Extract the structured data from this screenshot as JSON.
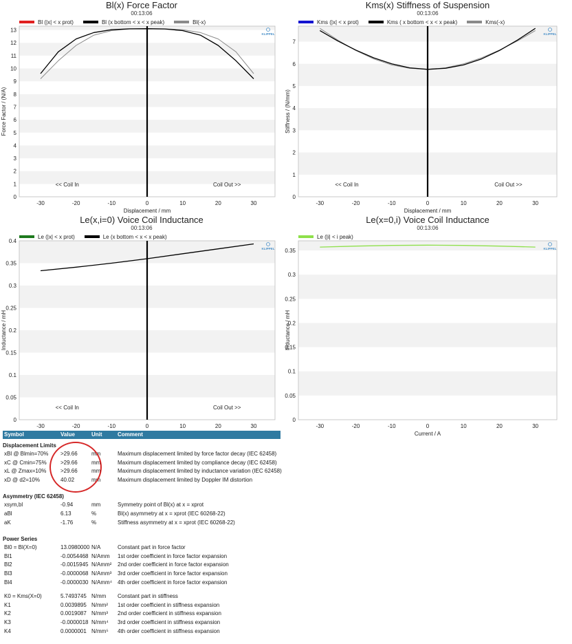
{
  "charts": [
    {
      "title": "Bl(x) Force Factor",
      "time": "00:13:06",
      "legend": [
        {
          "label": "Bl (|x| < x prot)",
          "color": "#e02020"
        },
        {
          "label": "Bl (x bottom < x < x peak)",
          "color": "#000000"
        },
        {
          "label": "Bl(-x)",
          "color": "#8a8a8a"
        }
      ],
      "xlabel": "Displacement / mm",
      "ylabel": "Force Factor / (N/A)",
      "annot_left": "<< Coil In",
      "annot_right": "Coil Out >>",
      "logo": "KLIPPEL"
    },
    {
      "title": "Kms(x) Stiffness of Suspension",
      "time": "00:13:06",
      "legend": [
        {
          "label": "Kms (|x| < x prot)",
          "color": "#1414d0"
        },
        {
          "label": "Kms ( x bottom < x < x peak)",
          "color": "#000000"
        },
        {
          "label": "Kms(-x)",
          "color": "#8a8a8a"
        }
      ],
      "xlabel": "Displacement / mm",
      "ylabel": "Stiffness / (N/mm)",
      "annot_left": "<< Coil In",
      "annot_right": "Coil Out >>",
      "logo": "KLIPPEL"
    },
    {
      "title": "Le(x,i=0) Voice Coil Inductance",
      "time": "00:13:06",
      "legend": [
        {
          "label": "Le (|x| < x prot)",
          "color": "#1e7a1e"
        },
        {
          "label": "Le (x bottom < x < x peak)",
          "color": "#000000"
        }
      ],
      "xlabel": "Displacement / mm",
      "ylabel": "Inductance / mH",
      "annot_left": "<< Coil In",
      "annot_right": "Coil Out >>",
      "logo": "KLIPPEL"
    },
    {
      "title": "Le(x=0,i) Voice Coil Inductance",
      "time": "00:13:06",
      "legend": [
        {
          "label": "Le (|i| < i peak)",
          "color": "#8ee04a"
        }
      ],
      "xlabel": "Current / A",
      "ylabel": "Inductance / mH",
      "annot_left": "",
      "annot_right": "",
      "logo": "KLIPPEL"
    }
  ],
  "chart_data": [
    {
      "type": "line",
      "title": "Bl(x) Force Factor",
      "xlabel": "Displacement / mm",
      "ylabel": "Force Factor / (N/A)",
      "xlim": [
        -36,
        36
      ],
      "ylim": [
        0,
        13.3
      ],
      "xticks": [
        -30,
        -20,
        -10,
        0,
        10,
        20,
        30
      ],
      "yticks": [
        0,
        1,
        2,
        3,
        4,
        5,
        6,
        7,
        8,
        9,
        10,
        11,
        12,
        13
      ],
      "grid": "alternating horizontal bands",
      "series": [
        {
          "name": "Bl (x bottom < x < x peak)",
          "color": "#000000",
          "x": [
            -30,
            -25,
            -20,
            -15,
            -10,
            -5,
            0,
            5,
            10,
            15,
            20,
            25,
            30
          ],
          "y": [
            9.6,
            11.3,
            12.3,
            12.8,
            13.02,
            13.09,
            13.1,
            13.08,
            12.95,
            12.6,
            11.8,
            10.6,
            9.2
          ]
        },
        {
          "name": "Bl(-x)",
          "color": "#8a8a8a",
          "x": [
            -30,
            -25,
            -20,
            -15,
            -10,
            -5,
            0,
            5,
            10,
            15,
            20,
            25,
            30
          ],
          "y": [
            9.2,
            10.6,
            11.8,
            12.6,
            12.95,
            13.08,
            13.1,
            13.09,
            13.02,
            12.8,
            12.3,
            11.3,
            9.6
          ]
        }
      ]
    },
    {
      "type": "line",
      "title": "Kms(x) Stiffness of Suspension",
      "xlabel": "Displacement / mm",
      "ylabel": "Stiffness / (N/mm)",
      "xlim": [
        -36,
        36
      ],
      "ylim": [
        0,
        7.7
      ],
      "xticks": [
        -30,
        -20,
        -10,
        0,
        10,
        20,
        30
      ],
      "yticks": [
        0,
        1,
        2,
        3,
        4,
        5,
        6,
        7
      ],
      "grid": "alternating horizontal bands",
      "series": [
        {
          "name": "Kms ( x bottom < x < x peak)",
          "color": "#000000",
          "x": [
            -30,
            -25,
            -20,
            -15,
            -10,
            -5,
            0,
            5,
            10,
            15,
            20,
            25,
            30
          ],
          "y": [
            7.5,
            7.03,
            6.62,
            6.27,
            6.0,
            5.82,
            5.75,
            5.8,
            5.95,
            6.22,
            6.6,
            7.07,
            7.6
          ]
        },
        {
          "name": "Kms(-x)",
          "color": "#8a8a8a",
          "x": [
            -30,
            -25,
            -20,
            -15,
            -10,
            -5,
            0,
            5,
            10,
            15,
            20,
            25,
            30
          ],
          "y": [
            7.6,
            7.07,
            6.6,
            6.22,
            5.95,
            5.8,
            5.75,
            5.82,
            6.0,
            6.27,
            6.62,
            7.03,
            7.5
          ]
        }
      ]
    },
    {
      "type": "line",
      "title": "Le(x,i=0) Voice Coil Inductance",
      "xlabel": "Displacement / mm",
      "ylabel": "Inductance / mH",
      "xlim": [
        -36,
        36
      ],
      "ylim": [
        0,
        0.4
      ],
      "xticks": [
        -30,
        -20,
        -10,
        0,
        10,
        20,
        30
      ],
      "yticks": [
        0,
        0.05,
        0.1,
        0.15,
        0.2,
        0.25,
        0.3,
        0.35,
        0.4
      ],
      "grid": "alternating horizontal bands",
      "series": [
        {
          "name": "Le (x bottom < x < x peak)",
          "color": "#000000",
          "x": [
            -30,
            -20,
            -10,
            0,
            10,
            20,
            30
          ],
          "y": [
            0.333,
            0.341,
            0.35,
            0.36,
            0.371,
            0.382,
            0.393
          ]
        }
      ]
    },
    {
      "type": "line",
      "title": "Le(x=0,i) Voice Coil Inductance",
      "xlabel": "Current / A",
      "ylabel": "Inductance / mH",
      "xlim": [
        -36,
        36
      ],
      "ylim": [
        0,
        0.37
      ],
      "xticks": [
        -30,
        -20,
        -10,
        0,
        10,
        20,
        30
      ],
      "yticks": [
        0,
        0.05,
        0.1,
        0.15,
        0.2,
        0.25,
        0.3,
        0.35
      ],
      "grid": "alternating horizontal bands",
      "series": [
        {
          "name": "Le (|i| < i peak)",
          "color": "#8ee04a",
          "x": [
            -30,
            -20,
            -10,
            0,
            10,
            20,
            30
          ],
          "y": [
            0.357,
            0.359,
            0.3605,
            0.361,
            0.3605,
            0.359,
            0.357
          ]
        }
      ]
    }
  ],
  "table": {
    "headers": [
      "Symbol",
      "Value",
      "Unit",
      "Comment"
    ],
    "sections": [
      {
        "title": "Displacement Limits",
        "rows": [
          {
            "symbol": "xBl @ Blmin=70%",
            "value": ">29.66",
            "unit": "mm",
            "comment": "Maximum displacement limited by force factor decay (IEC 62458)"
          },
          {
            "symbol": "xC @ Cmin=75%",
            "value": ">29.66",
            "unit": "mm",
            "comment": "Maximum displacement limited by compliance decay (IEC 62458)"
          },
          {
            "symbol": "xL @ Zmax=10%",
            "value": ">29.66",
            "unit": "mm",
            "comment": "Maximum displacement limited by inductance variation (IEC 62458)"
          },
          {
            "symbol": "xD @ d2=10%",
            "value": "40.02",
            "unit": "mm",
            "comment": "Maximum displacement limited by Doppler IM distortion"
          }
        ]
      },
      {
        "title": "Asymmetry (IEC 62458)",
        "rows": [
          {
            "symbol": "xsym,bl",
            "value": "-0.94",
            "unit": "mm",
            "comment": "Symmetry point of Bl(x) at x = xprot"
          },
          {
            "symbol": "aBl",
            "value": "6.13",
            "unit": "%",
            "comment": "Bl(x) asymmetry at x = xprot (IEC 60268-22)"
          },
          {
            "symbol": "aK",
            "value": "-1.76",
            "unit": "%",
            "comment": "Stiffness asymmetry at x = xprot (IEC 60268-22)"
          }
        ]
      },
      {
        "title": "Power Series",
        "rows": [
          {
            "symbol": "Bl0 = Bl(X=0)",
            "value": "13.0980000",
            "unit": "N/A",
            "comment": "Constant part in force factor"
          },
          {
            "symbol": "Bl1",
            "value": "-0.0054468",
            "unit": "N/Amm",
            "comment": "1st order coefficient in force factor expansion"
          },
          {
            "symbol": "Bl2",
            "value": "-0.0015945",
            "unit": "N/Amm²",
            "comment": "2nd order coefficient in force factor expansion"
          },
          {
            "symbol": "Bl3",
            "value": "-0.0000068",
            "unit": "N/Amm³",
            "comment": "3rd order coefficient in force factor expansion"
          },
          {
            "symbol": "Bl4",
            "value": "-0.0000030",
            "unit": "N/Amm⁴",
            "comment": "4th order coefficient in force factor expansion"
          },
          {
            "gap": true
          },
          {
            "symbol": "K0 = Kms(X=0)",
            "value": "5.7493745",
            "unit": "N/mm",
            "comment": "Constant part in stiffness"
          },
          {
            "symbol": "K1",
            "value": "0.0039895",
            "unit": "N/mm²",
            "comment": "1st order coefficient in stiffness expansion"
          },
          {
            "symbol": "K2",
            "value": "0.0019087",
            "unit": "N/mm³",
            "comment": "2nd order coefficient in stiffness expansion"
          },
          {
            "symbol": "K3",
            "value": "-0.0000018",
            "unit": "N/mm⁴",
            "comment": "3rd order coefficient in stiffness expansion"
          },
          {
            "symbol": "K4",
            "value": "0.0000001",
            "unit": "N/mm⁵",
            "comment": "4th order coefficient in stiffness expansion"
          }
        ]
      }
    ],
    "highlight_color": "#d62828"
  }
}
